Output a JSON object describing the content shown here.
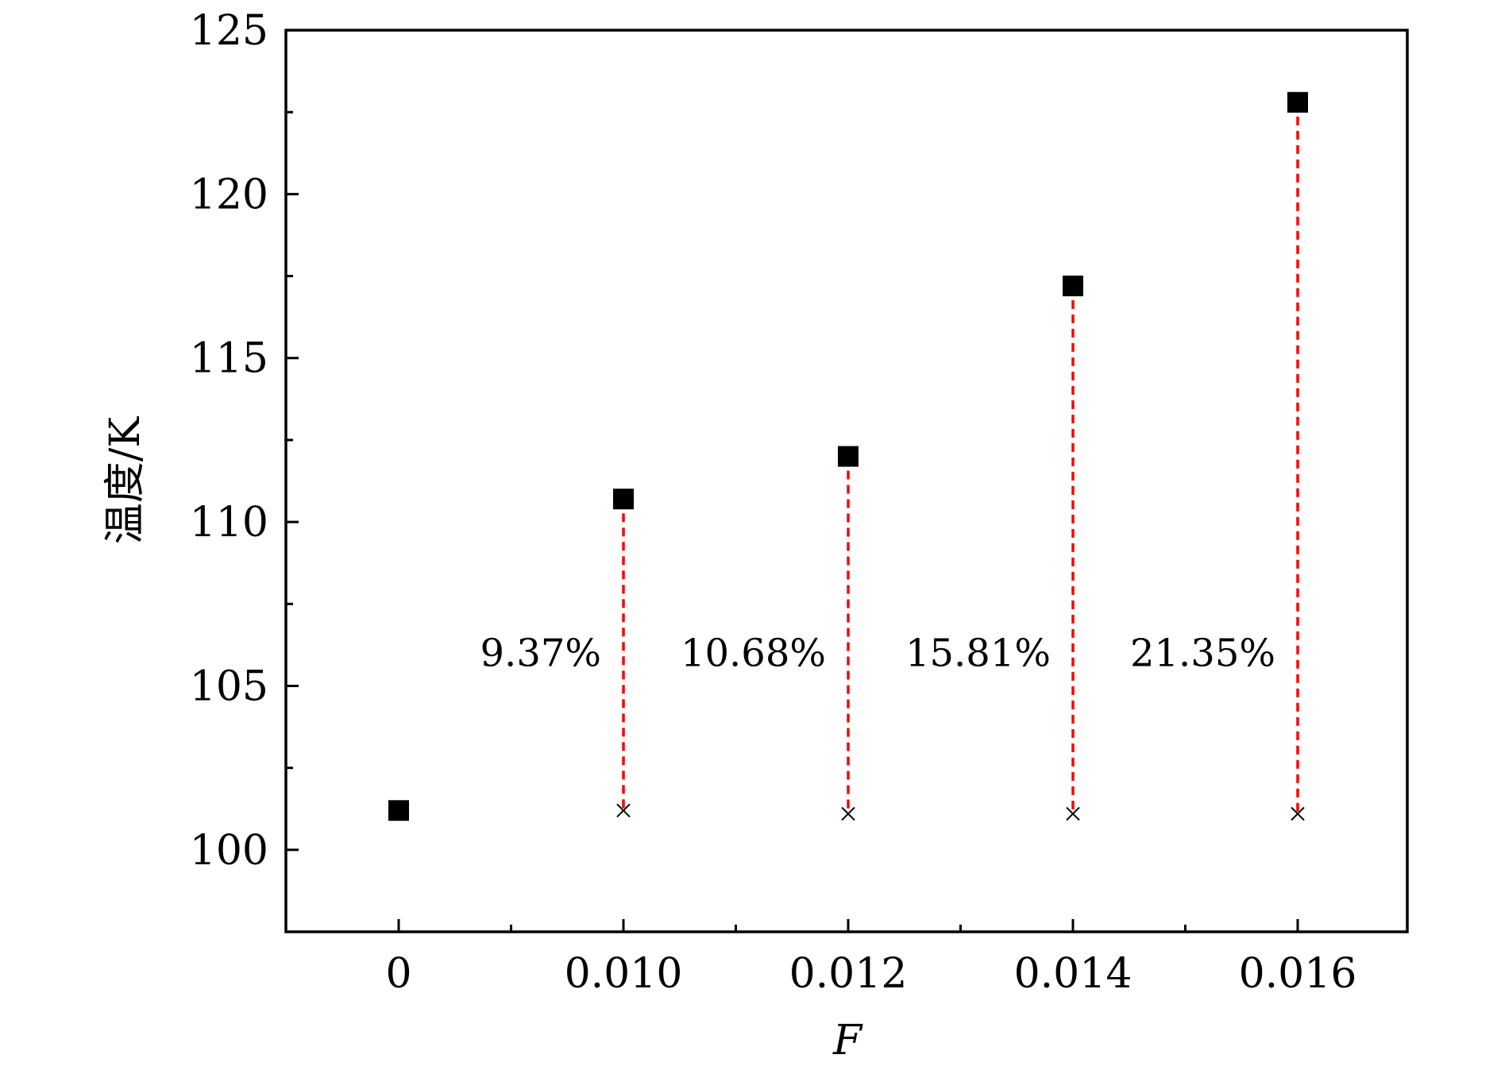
{
  "chart_data": {
    "type": "scatter",
    "title": "",
    "xlabel": "F",
    "ylabel": "温度/K",
    "categories": [
      "0",
      "0.010",
      "0.012",
      "0.014",
      "0.016"
    ],
    "ylim": [
      97.5,
      125
    ],
    "yticks": [
      100,
      105,
      110,
      115,
      120,
      125
    ],
    "grid": false,
    "legend": "none",
    "series": [
      {
        "marker": "square",
        "color": "#000000",
        "values": [
          101.2,
          110.7,
          112.0,
          117.2,
          122.8
        ]
      },
      {
        "marker": "x",
        "color": "#000000",
        "values": [
          null,
          101.2,
          101.1,
          101.1,
          101.1
        ]
      }
    ],
    "annotations": [
      {
        "category": "0.010",
        "text": "9.37%",
        "from": 101.2,
        "to": 110.7,
        "y": 105.6
      },
      {
        "category": "0.012",
        "text": "10.68%",
        "from": 101.1,
        "to": 112.0,
        "y": 105.6
      },
      {
        "category": "0.014",
        "text": "15.81%",
        "from": 101.1,
        "to": 117.2,
        "y": 105.6
      },
      {
        "category": "0.016",
        "text": "21.35%",
        "from": 101.1,
        "to": 122.8,
        "y": 105.6
      }
    ],
    "colors": {
      "axis": "#000000",
      "marker": "#000000",
      "dashed_line": "#ff0000"
    }
  }
}
